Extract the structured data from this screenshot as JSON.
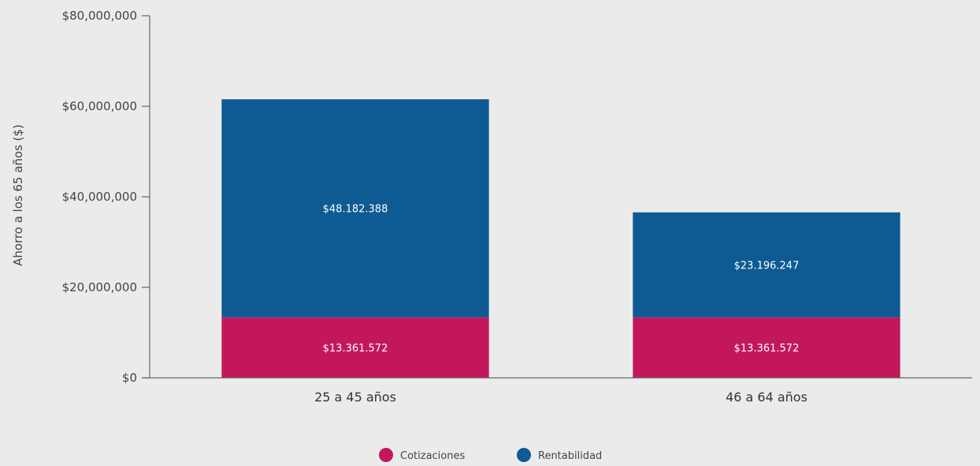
{
  "chart_data": {
    "type": "bar",
    "stacked": true,
    "categories": [
      "25 a 45 años",
      "46 a 64 años"
    ],
    "series": [
      {
        "name": "Cotizaciones",
        "color": "#c2185b",
        "values": [
          13361572,
          13361572
        ],
        "labels": [
          "$13.361.572",
          "$13.361.572"
        ]
      },
      {
        "name": "Rentabilidad",
        "color": "#0e5a92",
        "values": [
          48182388,
          23196247
        ],
        "labels": [
          "$48.182.388",
          "$23.196.247"
        ]
      }
    ],
    "ylabel": "Ahorro a los 65 años ($)",
    "ylim": [
      0,
      80000000
    ],
    "yticks": [
      0,
      20000000,
      40000000,
      60000000,
      80000000
    ],
    "ytick_labels": [
      "$0",
      "$20,000,000",
      "$40,000,000",
      "$60,000,000",
      "$80,000,000"
    ],
    "grid": false,
    "legend_position": "bottom-center"
  }
}
